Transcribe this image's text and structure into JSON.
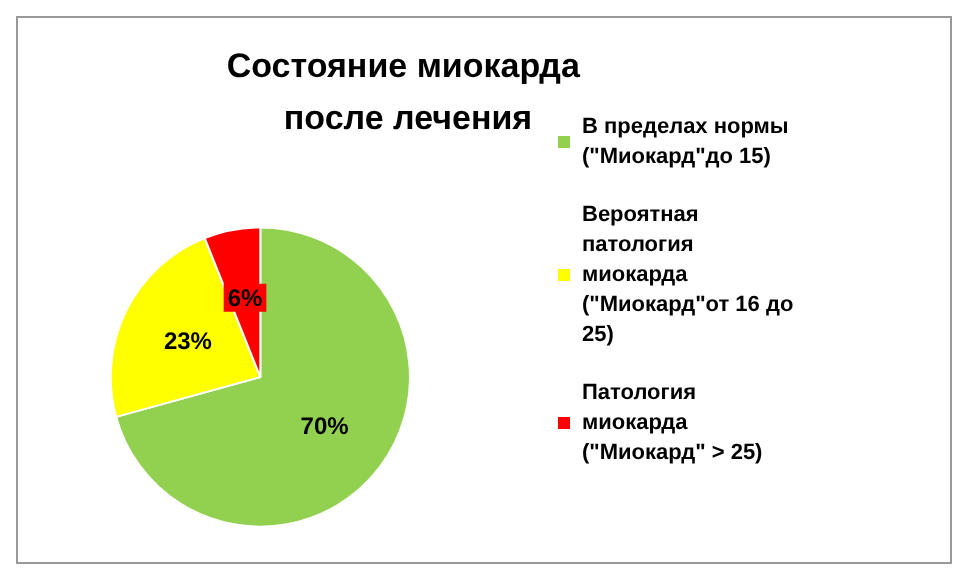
{
  "chart_data": {
    "type": "pie",
    "title": "Состояние миокарда после лечения",
    "categories": [
      "В пределах нормы (\"Миокард\"до 15)",
      "Вероятная патология миокарда (\"Миокард\"от 16 до 25)",
      "Патология миокарда (\"Миокард\" > 25)"
    ],
    "values": [
      70,
      23,
      6
    ],
    "colors": [
      "#92d050",
      "#ffff00",
      "#ff0000"
    ],
    "value_labels": [
      "70%",
      "23%",
      "6%"
    ],
    "legend": "right"
  }
}
